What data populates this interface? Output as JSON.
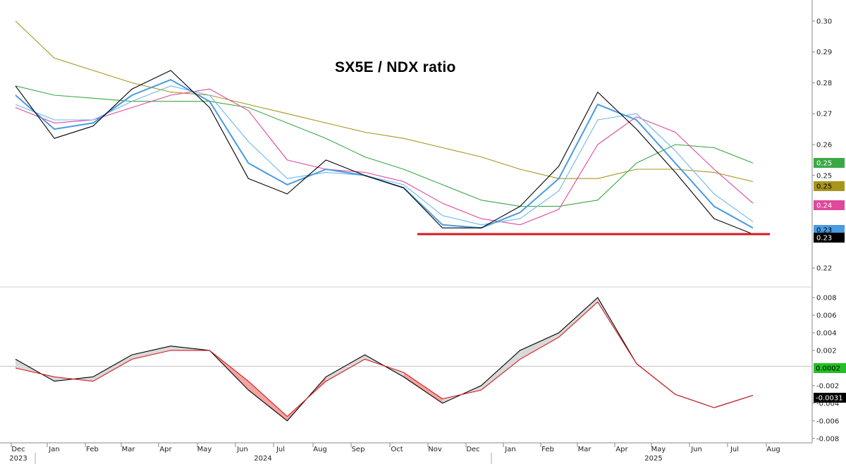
{
  "chart_data": [
    {
      "type": "line",
      "title": "SX5E / NDX ratio",
      "x": [
        "2023-12",
        "2024-01",
        "2024-02",
        "2024-03",
        "2024-04",
        "2024-05",
        "2024-06",
        "2024-07",
        "2024-08",
        "2024-09",
        "2024-10",
        "2024-11",
        "2024-12",
        "2025-01",
        "2025-02",
        "2025-03",
        "2025-04",
        "2025-05",
        "2025-06",
        "2025-07"
      ],
      "ylim": [
        0.215,
        0.305
      ],
      "y_ticks": [
        "0.30",
        "0.29",
        "0.28",
        "0.27",
        "0.26",
        "0.25",
        "0.22"
      ],
      "series": [
        {
          "values": [
            0.279,
            0.262,
            0.266,
            0.278,
            0.284,
            0.272,
            0.249,
            0.244,
            0.255,
            0.25,
            0.246,
            0.233,
            0.233,
            0.24,
            0.253,
            0.277,
            0.265,
            0.251,
            0.236,
            0.231
          ],
          "color": "#000000"
        },
        {
          "values": [
            0.276,
            0.265,
            0.267,
            0.276,
            0.281,
            0.274,
            0.254,
            0.247,
            0.252,
            0.25,
            0.246,
            0.234,
            0.233,
            0.238,
            0.249,
            0.273,
            0.268,
            0.254,
            0.24,
            0.233
          ],
          "color": "#4a9be0"
        },
        {
          "values": [
            0.273,
            0.268,
            0.268,
            0.274,
            0.279,
            0.276,
            0.261,
            0.249,
            0.251,
            0.25,
            0.247,
            0.237,
            0.234,
            0.236,
            0.245,
            0.268,
            0.27,
            0.258,
            0.244,
            0.235
          ],
          "color": "#6fb6ee"
        },
        {
          "values": [
            0.272,
            0.267,
            0.268,
            0.272,
            0.276,
            0.278,
            0.271,
            0.255,
            0.252,
            0.251,
            0.248,
            0.241,
            0.236,
            0.234,
            0.239,
            0.26,
            0.269,
            0.264,
            0.252,
            0.241
          ],
          "color": "#e0489a"
        },
        {
          "values": [
            0.279,
            0.276,
            0.275,
            0.274,
            0.274,
            0.274,
            0.272,
            0.267,
            0.262,
            0.256,
            0.252,
            0.247,
            0.242,
            0.24,
            0.24,
            0.242,
            0.254,
            0.26,
            0.259,
            0.254
          ],
          "color": "#3aa845"
        },
        {
          "values": [
            0.3,
            0.288,
            0.284,
            0.28,
            0.277,
            0.276,
            0.273,
            0.27,
            0.267,
            0.264,
            0.262,
            0.259,
            0.256,
            0.252,
            0.249,
            0.249,
            0.252,
            0.252,
            0.251,
            0.248
          ],
          "color": "#a8951e"
        }
      ],
      "hline": {
        "value": 0.231,
        "color": "#d7191c"
      },
      "last_values": [
        {
          "label": "0.25",
          "color": "#3aa845"
        },
        {
          "label": "0.25",
          "color": "#a8951e"
        },
        {
          "label": "0.24",
          "color": "#e0489a"
        },
        {
          "label": "0.23",
          "color": "#4a9be0"
        },
        {
          "label": "0.23",
          "color": "#000000"
        }
      ]
    },
    {
      "type": "line",
      "ylim": [
        -0.0085,
        0.0088
      ],
      "y_ticks": [
        "0.008",
        "0.006",
        "0.004",
        "0.002",
        "-0.002",
        "-0.004",
        "-0.006",
        "-0.008"
      ],
      "series": [
        {
          "values": [
            0.001,
            -0.0015,
            -0.001,
            0.0015,
            0.0025,
            0.002,
            -0.0025,
            -0.006,
            -0.001,
            0.0015,
            -0.001,
            -0.004,
            -0.002,
            0.002,
            0.004,
            0.008,
            0.0005,
            -0.003,
            -0.0045,
            -0.0031
          ],
          "color": "#000000"
        },
        {
          "values": [
            0.0,
            -0.001,
            -0.0015,
            0.001,
            0.002,
            0.002,
            -0.0015,
            -0.0055,
            -0.0015,
            0.001,
            -0.0005,
            -0.0035,
            -0.0025,
            0.001,
            0.0035,
            0.0075,
            0.0005,
            -0.003,
            -0.0045,
            -0.0031
          ],
          "color": "#d7191c"
        }
      ],
      "zero_line": 0.0002,
      "last_values": [
        {
          "label": "0.0002",
          "color": "#22c022"
        },
        {
          "label": "-0.0031",
          "color": "#000000"
        }
      ]
    }
  ],
  "x_axis": {
    "months": [
      "Dec",
      "Jan",
      "Feb",
      "Mar",
      "Apr",
      "May",
      "Jun",
      "Jul",
      "Aug",
      "Sep",
      "Oct",
      "Nov",
      "Dec",
      "Jan",
      "Feb",
      "Mar",
      "Apr",
      "May",
      "Jun",
      "Jul",
      "Aug"
    ],
    "years": [
      "2023",
      "2024",
      "2025"
    ]
  }
}
